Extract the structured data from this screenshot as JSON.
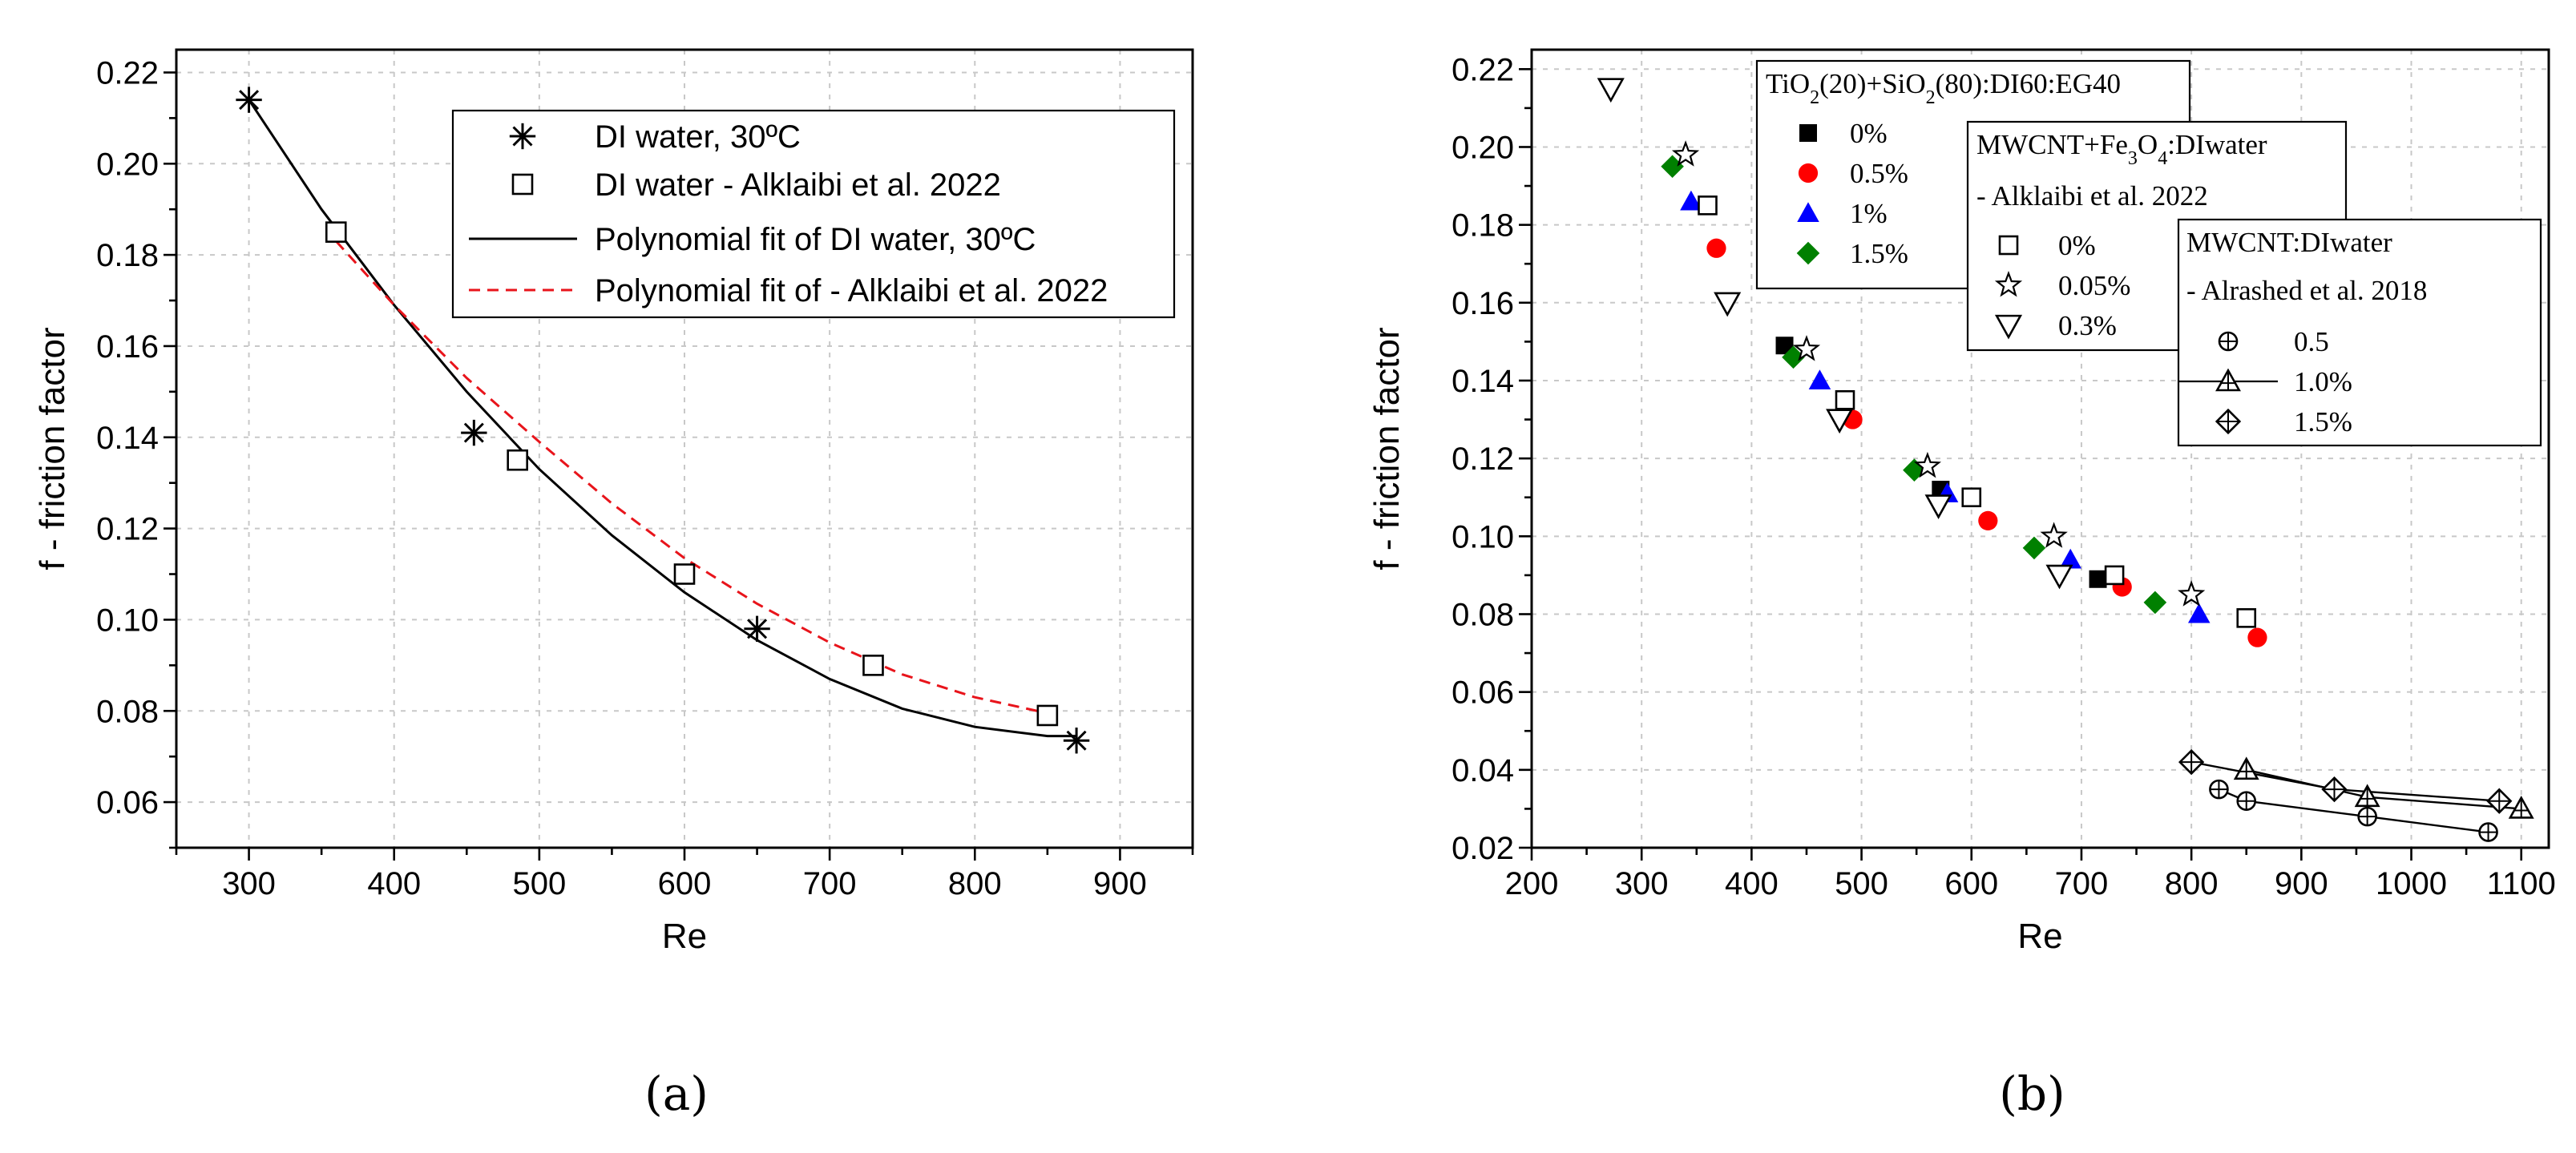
{
  "chart_data": [
    {
      "panel": "a",
      "panel_label": "(a)",
      "type": "scatter",
      "xlabel": "Re",
      "ylabel": "f - friction factor",
      "xlim": [
        250,
        950
      ],
      "ylim": [
        0.05,
        0.225
      ],
      "xticks": [
        300,
        400,
        500,
        600,
        700,
        800,
        900
      ],
      "yticks": [
        0.06,
        0.08,
        0.1,
        0.12,
        0.14,
        0.16,
        0.18,
        0.2,
        0.22
      ],
      "ytick_labels": [
        "0.06",
        "0.08",
        "0.10",
        "0.12",
        "0.14",
        "0.16",
        "0.18",
        "0.20",
        "0.22"
      ],
      "series": [
        {
          "name": "DI water, 30ºC",
          "marker": "asterisk",
          "color": "#000000",
          "x": [
            300,
            455,
            650,
            870
          ],
          "y": [
            0.214,
            0.141,
            0.098,
            0.0735
          ]
        },
        {
          "name": "DI water - Alklaibi et al. 2022",
          "marker": "square-open",
          "color": "#000000",
          "x": [
            360,
            485,
            600,
            730,
            850
          ],
          "y": [
            0.185,
            0.135,
            0.11,
            0.09,
            0.079
          ]
        },
        {
          "name": "Polynomial fit of DI water, 30ºC",
          "line": "solid",
          "color": "#000000",
          "x": [
            300,
            350,
            400,
            450,
            500,
            550,
            600,
            650,
            700,
            750,
            800,
            850,
            870
          ],
          "y": [
            0.214,
            0.19,
            0.169,
            0.15,
            0.133,
            0.1185,
            0.106,
            0.0955,
            0.087,
            0.0805,
            0.0765,
            0.0745,
            0.0745
          ]
        },
        {
          "name": "Polynomial fit of - Alklaibi et al. 2022",
          "line": "dashed",
          "color": "#e8141b",
          "x": [
            360,
            400,
            450,
            500,
            550,
            600,
            650,
            700,
            750,
            800,
            850
          ],
          "y": [
            0.183,
            0.169,
            0.153,
            0.139,
            0.1255,
            0.1135,
            0.1035,
            0.095,
            0.088,
            0.083,
            0.0795
          ]
        }
      ]
    },
    {
      "panel": "b",
      "panel_label": "(b)",
      "type": "scatter",
      "xlabel": "Re",
      "ylabel": "f - friction factor",
      "xlim": [
        200,
        1125
      ],
      "ylim": [
        0.02,
        0.225
      ],
      "xticks": [
        200,
        300,
        400,
        500,
        600,
        700,
        800,
        900,
        1000,
        1100
      ],
      "yticks": [
        0.02,
        0.04,
        0.06,
        0.08,
        0.1,
        0.12,
        0.14,
        0.16,
        0.18,
        0.2,
        0.22
      ],
      "ytick_labels": [
        "0.02",
        "0.04",
        "0.06",
        "0.08",
        "0.10",
        "0.12",
        "0.14",
        "0.16",
        "0.18",
        "0.20",
        "0.22"
      ],
      "legends": [
        {
          "title": "TiO₂(20)+SiO₂(80):DI60:EG40",
          "items": [
            {
              "label": "0%",
              "marker": "square-filled",
              "color": "#000000"
            },
            {
              "label": "0.5%",
              "marker": "circle-filled",
              "color": "#ff0000"
            },
            {
              "label": "1%",
              "marker": "triangle-filled",
              "color": "#0000ff"
            },
            {
              "label": "1.5%",
              "marker": "diamond-filled",
              "color": "#008000"
            }
          ]
        },
        {
          "title": "MWCNT+Fe₃O₄:DIwater",
          "subtitle": "- Alklaibi et al. 2022",
          "items": [
            {
              "label": "0%",
              "marker": "square-open",
              "color": "#000000"
            },
            {
              "label": "0.05%",
              "marker": "star-open",
              "color": "#000000"
            },
            {
              "label": "0.3%",
              "marker": "triangle-down-open",
              "color": "#000000"
            }
          ]
        },
        {
          "title": "MWCNT:DIwater",
          "subtitle": "- Alrashed et al. 2018",
          "items": [
            {
              "label": "0.5",
              "marker": "circle-plus",
              "color": "#000000"
            },
            {
              "label": "1.0%",
              "marker": "triangle-plus",
              "color": "#000000"
            },
            {
              "label": "1.5%",
              "marker": "diamond-plus",
              "color": "#000000"
            }
          ]
        }
      ],
      "series": [
        {
          "name": "0%",
          "marker": "square-filled",
          "color": "#000000",
          "x": [
            430,
            572,
            715
          ],
          "y": [
            0.149,
            0.112,
            0.089
          ]
        },
        {
          "name": "0.5%",
          "marker": "circle-filled",
          "color": "#ff0000",
          "x": [
            368,
            492,
            615,
            737,
            860
          ],
          "y": [
            0.174,
            0.13,
            0.104,
            0.087,
            0.074
          ]
        },
        {
          "name": "1%",
          "marker": "triangle-filled",
          "color": "#0000ff",
          "x": [
            345,
            462,
            578,
            690,
            807
          ],
          "y": [
            0.186,
            0.14,
            0.111,
            0.094,
            0.08
          ]
        },
        {
          "name": "1.5%",
          "marker": "diamond-filled",
          "color": "#008000",
          "x": [
            328,
            438,
            548,
            657,
            767
          ],
          "y": [
            0.195,
            0.146,
            0.117,
            0.097,
            0.083
          ]
        },
        {
          "name": "0% (Alklaibi)",
          "marker": "square-open",
          "color": "#000000",
          "x": [
            360,
            485,
            600,
            730,
            850
          ],
          "y": [
            0.185,
            0.135,
            0.11,
            0.09,
            0.079
          ]
        },
        {
          "name": "0.05%",
          "marker": "star-open",
          "color": "#000000",
          "x": [
            340,
            450,
            560,
            675,
            800
          ],
          "y": [
            0.198,
            0.148,
            0.118,
            0.1,
            0.085
          ]
        },
        {
          "name": "0.3%",
          "marker": "triangle-down-open",
          "color": "#000000",
          "x": [
            272,
            378,
            480,
            570,
            680
          ],
          "y": [
            0.215,
            0.16,
            0.13,
            0.108,
            0.09
          ]
        },
        {
          "name": "0.5",
          "marker": "circle-plus",
          "color": "#000000",
          "line": true,
          "x": [
            825,
            850,
            960,
            1070
          ],
          "y": [
            0.035,
            0.032,
            0.028,
            0.024
          ]
        },
        {
          "name": "1.0%",
          "marker": "triangle-plus",
          "color": "#000000",
          "line": true,
          "x": [
            850,
            960,
            1100
          ],
          "y": [
            0.04,
            0.033,
            0.03
          ]
        },
        {
          "name": "1.5%",
          "marker": "diamond-plus",
          "color": "#000000",
          "line": true,
          "x": [
            800,
            930,
            1080
          ],
          "y": [
            0.042,
            0.035,
            0.032
          ]
        }
      ]
    }
  ]
}
